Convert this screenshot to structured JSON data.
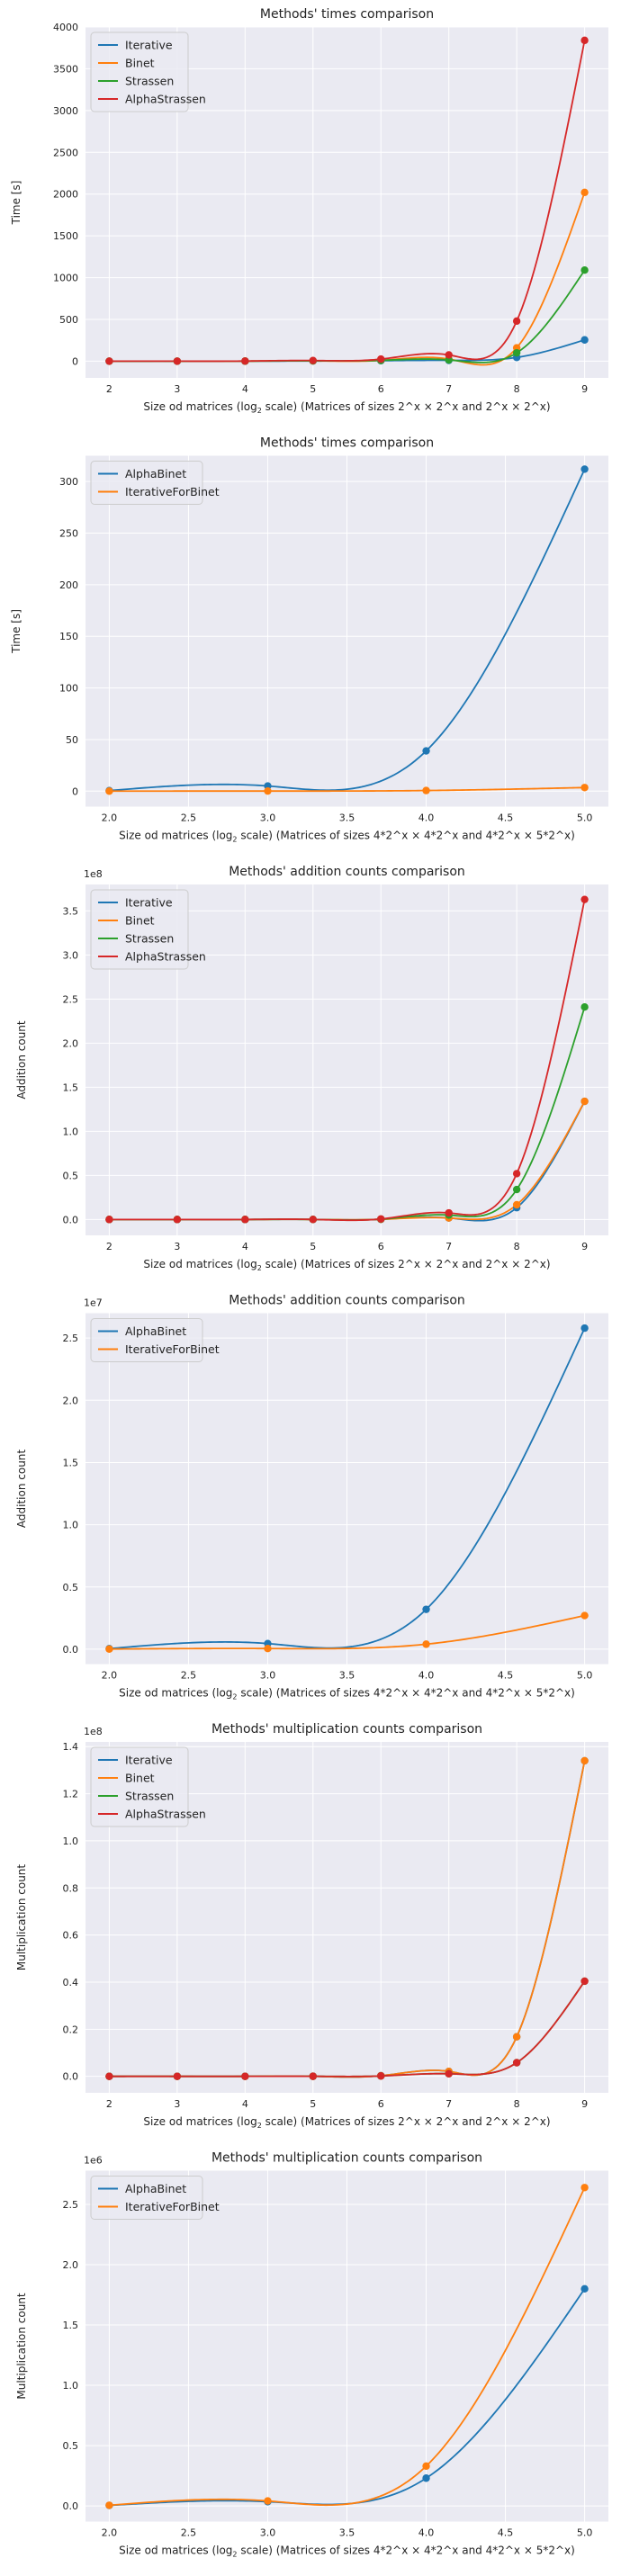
{
  "chart_data": [
    {
      "type": "line",
      "title": "Methods' times comparison",
      "xlabel_pre": "Size od matrices (log",
      "xlabel_sub": "2",
      "xlabel_post": " scale) (Matrices of sizes 2^x × 2^x and 2^x × 2^x)",
      "ylabel": "Time [s]",
      "exponent": "",
      "xticks": [
        "2",
        "3",
        "4",
        "5",
        "6",
        "7",
        "8",
        "9"
      ],
      "xtick_values": [
        2,
        3,
        4,
        5,
        6,
        7,
        8,
        9
      ],
      "yticks": [
        "0",
        "500",
        "1000",
        "1500",
        "2000",
        "2500",
        "3000",
        "3500",
        "4000"
      ],
      "ytick_values": [
        0,
        500,
        1000,
        1500,
        2000,
        2500,
        3000,
        3500,
        4000
      ],
      "xlim": [
        1.65,
        9.35
      ],
      "ylim": [
        -200,
        4000
      ],
      "grid": true,
      "legend": "top-left",
      "x": [
        2,
        3,
        4,
        5,
        6,
        7,
        8,
        9
      ],
      "series": [
        {
          "name": "Iterative",
          "color": "#1f77b4",
          "values": [
            0.01,
            0.05,
            0.4,
            2.5,
            6,
            10,
            45,
            255
          ]
        },
        {
          "name": "Binet",
          "color": "#ff7f0e",
          "values": [
            0.02,
            0.1,
            0.7,
            3.5,
            10,
            25,
            160,
            2020
          ]
        },
        {
          "name": "Strassen",
          "color": "#2ca02c",
          "values": [
            0.02,
            0.12,
            0.8,
            4,
            10,
            15,
            100,
            1090
          ]
        },
        {
          "name": "AlphaStrassen",
          "color": "#d62728",
          "values": [
            0.05,
            0.3,
            1.6,
            8,
            25,
            75,
            480,
            3840
          ]
        }
      ]
    },
    {
      "type": "line",
      "title": "Methods' times comparison",
      "xlabel_pre": "Size od matrices (log",
      "xlabel_sub": "2",
      "xlabel_post": " scale) (Matrices of sizes 4*2^x × 4*2^x and 4*2^x × 5*2^x)",
      "ylabel": "Time [s]",
      "exponent": "",
      "xticks": [
        "2.0",
        "2.5",
        "3.0",
        "3.5",
        "4.0",
        "4.5",
        "5.0"
      ],
      "xtick_values": [
        2,
        2.5,
        3,
        3.5,
        4,
        4.5,
        5
      ],
      "yticks": [
        "0",
        "50",
        "100",
        "150",
        "200",
        "250",
        "300"
      ],
      "ytick_values": [
        0,
        50,
        100,
        150,
        200,
        250,
        300
      ],
      "xlim": [
        1.85,
        5.15
      ],
      "ylim": [
        -15,
        325
      ],
      "grid": true,
      "legend": "top-left",
      "x": [
        2,
        3,
        4,
        5
      ],
      "series": [
        {
          "name": "AlphaBinet",
          "color": "#1f77b4",
          "values": [
            0.5,
            5,
            39,
            312
          ]
        },
        {
          "name": "IterativeForBinet",
          "color": "#ff7f0e",
          "values": [
            0.02,
            0.1,
            0.6,
            3.5
          ]
        }
      ]
    },
    {
      "type": "line",
      "title": "Methods' addition counts comparison",
      "xlabel_pre": "Size od matrices (log",
      "xlabel_sub": "2",
      "xlabel_post": " scale) (Matrices of sizes 2^x × 2^x and 2^x × 2^x)",
      "ylabel": "Addition count",
      "exponent": "1e8",
      "xticks": [
        "2",
        "3",
        "4",
        "5",
        "6",
        "7",
        "8",
        "9"
      ],
      "xtick_values": [
        2,
        3,
        4,
        5,
        6,
        7,
        8,
        9
      ],
      "yticks": [
        "0.0",
        "0.5",
        "1.0",
        "1.5",
        "2.0",
        "2.5",
        "3.0",
        "3.5"
      ],
      "ytick_values": [
        0,
        0.5,
        1,
        1.5,
        2,
        2.5,
        3,
        3.5
      ],
      "xlim": [
        1.65,
        9.35
      ],
      "ylim": [
        -0.18,
        3.8
      ],
      "grid": true,
      "legend": "top-left",
      "x": [
        2,
        3,
        4,
        5,
        6,
        7,
        8,
        9
      ],
      "series": [
        {
          "name": "Iterative",
          "color": "#1f77b4",
          "values": [
            5e-07,
            4e-06,
            3.3e-05,
            0.00026,
            0.0021,
            0.017,
            0.134,
            1.34
          ]
        },
        {
          "name": "Binet",
          "color": "#ff7f0e",
          "values": [
            5e-07,
            4e-06,
            3.3e-05,
            0.00026,
            0.0021,
            0.017,
            0.167,
            1.34
          ]
        },
        {
          "name": "Strassen",
          "color": "#2ca02c",
          "values": [
            1e-06,
            7e-06,
            5e-05,
            0.00035,
            0.0036,
            0.05,
            0.34,
            2.41
          ]
        },
        {
          "name": "AlphaStrassen",
          "color": "#d62728",
          "values": [
            2e-06,
            1e-05,
            8e-05,
            0.0006,
            0.006,
            0.075,
            0.52,
            3.63
          ]
        }
      ]
    },
    {
      "type": "line",
      "title": "Methods' addition counts comparison",
      "xlabel_pre": "Size od matrices (log",
      "xlabel_sub": "2",
      "xlabel_post": " scale) (Matrices of sizes 4*2^x × 4*2^x and 4*2^x × 5*2^x)",
      "ylabel": "Addition count",
      "exponent": "1e7",
      "xticks": [
        "2.0",
        "2.5",
        "3.0",
        "3.5",
        "4.0",
        "4.5",
        "5.0"
      ],
      "xtick_values": [
        2,
        2.5,
        3,
        3.5,
        4,
        4.5,
        5
      ],
      "yticks": [
        "0.0",
        "0.5",
        "1.0",
        "1.5",
        "2.0",
        "2.5"
      ],
      "ytick_values": [
        0,
        0.5,
        1,
        1.5,
        2,
        2.5
      ],
      "xlim": [
        1.85,
        5.15
      ],
      "ylim": [
        -0.12,
        2.7
      ],
      "grid": true,
      "legend": "top-left",
      "x": [
        2,
        3,
        4,
        5
      ],
      "series": [
        {
          "name": "AlphaBinet",
          "color": "#1f77b4",
          "values": [
            0.004,
            0.045,
            0.32,
            2.58
          ]
        },
        {
          "name": "IterativeForBinet",
          "color": "#ff7f0e",
          "values": [
            0.001,
            0.005,
            0.04,
            0.27
          ]
        }
      ]
    },
    {
      "type": "line",
      "title": "Methods' multiplication counts comparison",
      "xlabel_pre": "Size od matrices (log",
      "xlabel_sub": "2",
      "xlabel_post": " scale) (Matrices of sizes 2^x × 2^x and 2^x × 2^x)",
      "ylabel": "Multiplication count",
      "exponent": "1e8",
      "xticks": [
        "2",
        "3",
        "4",
        "5",
        "6",
        "7",
        "8",
        "9"
      ],
      "xtick_values": [
        2,
        3,
        4,
        5,
        6,
        7,
        8,
        9
      ],
      "yticks": [
        "0.0",
        "0.2",
        "0.4",
        "0.6",
        "0.8",
        "1.0",
        "1.2",
        "1.4"
      ],
      "ytick_values": [
        0,
        0.2,
        0.4,
        0.6,
        0.8,
        1,
        1.2,
        1.4
      ],
      "xlim": [
        1.65,
        9.35
      ],
      "ylim": [
        -0.07,
        1.42
      ],
      "grid": true,
      "legend": "top-left",
      "x": [
        2,
        3,
        4,
        5,
        6,
        7,
        8,
        9
      ],
      "series": [
        {
          "name": "Iterative",
          "color": "#1f77b4",
          "values": [
            6e-07,
            5e-06,
            4e-05,
            0.0003,
            0.0026,
            0.021,
            0.168,
            1.34
          ]
        },
        {
          "name": "Binet",
          "color": "#ff7f0e",
          "values": [
            6e-07,
            5e-06,
            4e-05,
            0.0003,
            0.0026,
            0.021,
            0.168,
            1.34
          ]
        },
        {
          "name": "Strassen",
          "color": "#2ca02c",
          "values": [
            5e-07,
            4e-06,
            3e-05,
            0.0002,
            0.0016,
            0.011,
            0.058,
            0.404
          ]
        },
        {
          "name": "AlphaStrassen",
          "color": "#d62728",
          "values": [
            5e-07,
            4e-06,
            3e-05,
            0.0002,
            0.0016,
            0.011,
            0.058,
            0.404
          ]
        }
      ]
    },
    {
      "type": "line",
      "title": "Methods' multiplication counts comparison",
      "xlabel_pre": "Size od matrices (log",
      "xlabel_sub": "2",
      "xlabel_post": " scale) (Matrices of sizes 4*2^x × 4*2^x and 4*2^x × 5*2^x)",
      "ylabel": "Multiplication count",
      "exponent": "1e6",
      "xticks": [
        "2.0",
        "2.5",
        "3.0",
        "3.5",
        "4.0",
        "4.5",
        "5.0"
      ],
      "xtick_values": [
        2,
        2.5,
        3,
        3.5,
        4,
        4.5,
        5
      ],
      "yticks": [
        "0.0",
        "0.5",
        "1.0",
        "1.5",
        "2.0",
        "2.5"
      ],
      "ytick_values": [
        0,
        0.5,
        1,
        1.5,
        2,
        2.5
      ],
      "xlim": [
        1.85,
        5.15
      ],
      "ylim": [
        -0.13,
        2.78
      ],
      "grid": true,
      "legend": "top-left",
      "x": [
        2,
        3,
        4,
        5
      ],
      "series": [
        {
          "name": "AlphaBinet",
          "color": "#1f77b4",
          "values": [
            0.004,
            0.035,
            0.23,
            1.8
          ]
        },
        {
          "name": "IterativeForBinet",
          "color": "#ff7f0e",
          "values": [
            0.005,
            0.041,
            0.33,
            2.64
          ]
        }
      ]
    }
  ]
}
